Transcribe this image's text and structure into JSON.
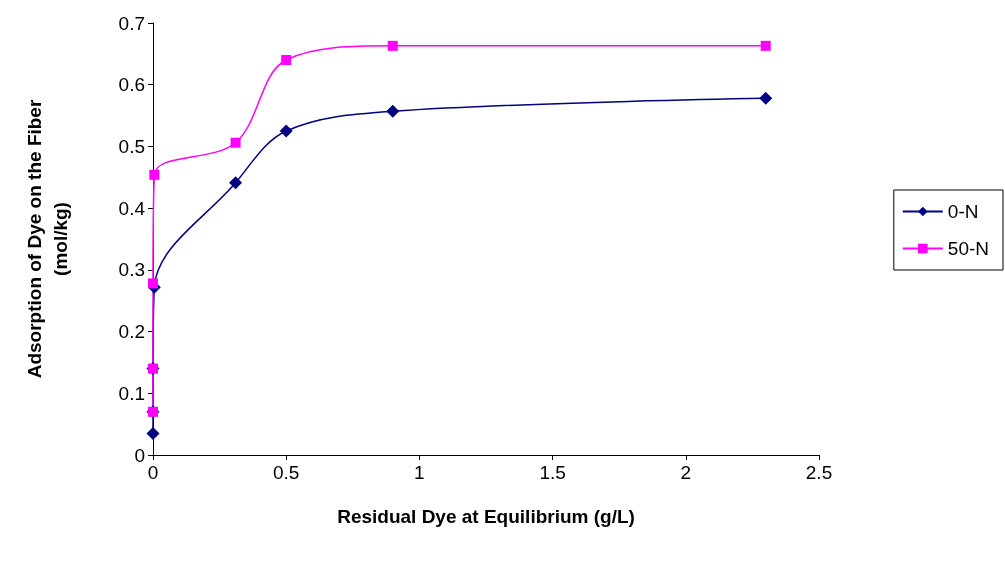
{
  "chart_data": {
    "type": "line",
    "xlabel": "Residual Dye at Equilibrium (g/L)",
    "ylabel": "Adsorption of Dye on the Fiber\n(mol/kg)",
    "series": [
      {
        "name": "0-N",
        "color": "#000080",
        "marker": "diamond",
        "x": [
          0,
          0,
          0,
          0.005,
          0.31,
          0.5,
          0.9,
          2.3
        ],
        "values": [
          0.035,
          0.07,
          0.14,
          0.272,
          0.441,
          0.525,
          0.557,
          0.578
        ]
      },
      {
        "name": "50-N",
        "color": "#ff00ff",
        "marker": "square",
        "x": [
          0,
          0,
          0,
          0.005,
          0.31,
          0.5,
          0.9,
          2.3
        ],
        "values": [
          0.07,
          0.14,
          0.278,
          0.454,
          0.506,
          0.64,
          0.663,
          0.663
        ]
      }
    ],
    "xlim": [
      0,
      2.5
    ],
    "xticks": [
      0,
      0.5,
      1,
      1.5,
      2,
      2.5
    ],
    "ylim": [
      0,
      0.7
    ],
    "yticks": [
      0,
      0.1,
      0.2,
      0.3,
      0.4,
      0.5,
      0.6,
      0.7
    ],
    "grid": false,
    "legend": "right",
    "line_style": "solid"
  }
}
